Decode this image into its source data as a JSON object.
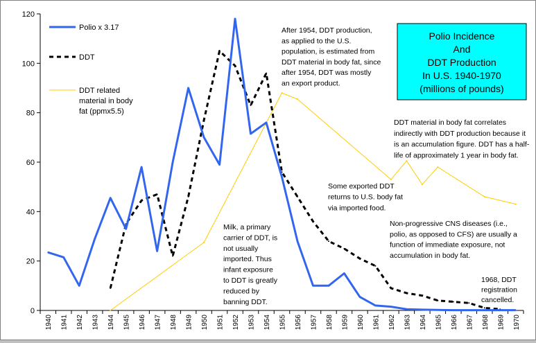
{
  "chart_data": {
    "type": "line",
    "title_lines": [
      "Polio Incidence",
      "And",
      "DDT Production",
      "In U.S. 1940-1970",
      "(millions of pounds)"
    ],
    "x": [
      1940,
      1941,
      1942,
      1943,
      1944,
      1945,
      1946,
      1947,
      1948,
      1949,
      1950,
      1951,
      1952,
      1953,
      1954,
      1955,
      1956,
      1957,
      1958,
      1959,
      1960,
      1961,
      1962,
      1963,
      1964,
      1965,
      1966,
      1967,
      1968,
      1969,
      1970
    ],
    "x_ticks": [
      "1940",
      "1941",
      "1942",
      "1943",
      "1944",
      "1945",
      "1946",
      "1947",
      "1948",
      "1949",
      "1950",
      "1951",
      "1952",
      "1953",
      "1954",
      "1955",
      "1956",
      "1957",
      "1958",
      "1959",
      "1960",
      "1961",
      "1962",
      "1963",
      "1964",
      "1965",
      "1966",
      "1967",
      "1968",
      "1969",
      "1970"
    ],
    "ylim": [
      0,
      120
    ],
    "y_ticks": [
      "0",
      "20",
      "40",
      "60",
      "80",
      "100",
      "120"
    ],
    "grid": false,
    "legend_position": "top-left",
    "series": [
      {
        "name": "Polio x 3.17",
        "color": "#3366ee",
        "style": "solid",
        "values": [
          23.5,
          21.5,
          10,
          29,
          45.5,
          33,
          58,
          24,
          60,
          90,
          70,
          59,
          118,
          71.5,
          76,
          54,
          28,
          10,
          10,
          15,
          5.5,
          2,
          1.5,
          0.5,
          0.3,
          0.2,
          0.1,
          0.1,
          0.1,
          0.1,
          0.1
        ]
      },
      {
        "name": "DDT",
        "color": "#000000",
        "style": "dashed",
        "values": [
          null,
          null,
          null,
          null,
          9,
          35,
          44.5,
          47,
          22,
          46,
          77,
          105,
          99,
          83,
          96,
          56,
          46,
          36,
          28,
          25,
          21,
          18,
          9,
          7,
          6,
          4,
          3.5,
          3,
          1,
          0.5,
          null
        ]
      },
      {
        "name_lines": [
          "DDT related",
          "material in body",
          "fat (ppmx5.5)"
        ],
        "color": "#ffcc00",
        "style": "solid",
        "x": [
          1944,
          1950,
          1955,
          1956,
          1962,
          1963,
          1964,
          1965,
          1968,
          1970
        ],
        "values": [
          0,
          27.5,
          88,
          85.5,
          53,
          60.5,
          51,
          58,
          46,
          43
        ]
      }
    ],
    "annotations": [
      {
        "id": "export",
        "lines": [
          "After 1954, DDT production,",
          "as applied to the U.S.",
          "population, is estimated from",
          "DDT material in body fat, since",
          "after 1954, DDT was mostly",
          "an export product."
        ]
      },
      {
        "id": "body-fat",
        "lines": [
          "DDT material in body fat correlates",
          "indirectly with DDT production because it",
          "is an accumulation figure. DDT has a half-",
          "life of approximately 1 year in body fat."
        ]
      },
      {
        "id": "exported",
        "lines": [
          "Some exported DDT",
          "returns to U.S. body fat",
          "via imported food."
        ]
      },
      {
        "id": "cns",
        "lines": [
          "Non-progressive CNS diseases (i.e.,",
          "polio, as opposed to CFS) are usually a",
          "function of immediate exposure, not",
          "accumulation in body fat."
        ]
      },
      {
        "id": "milk",
        "lines": [
          "Milk, a primary",
          "carrier of DDT, is",
          "not usually",
          "imported. Thus",
          "infant exposure",
          "to DDT is greatly",
          "reduced by",
          "banning DDT."
        ]
      },
      {
        "id": "registration",
        "lines": [
          "1968, DDT",
          "registration",
          "cancelled."
        ]
      }
    ],
    "colors": {
      "title_box": "#00ffff"
    }
  }
}
